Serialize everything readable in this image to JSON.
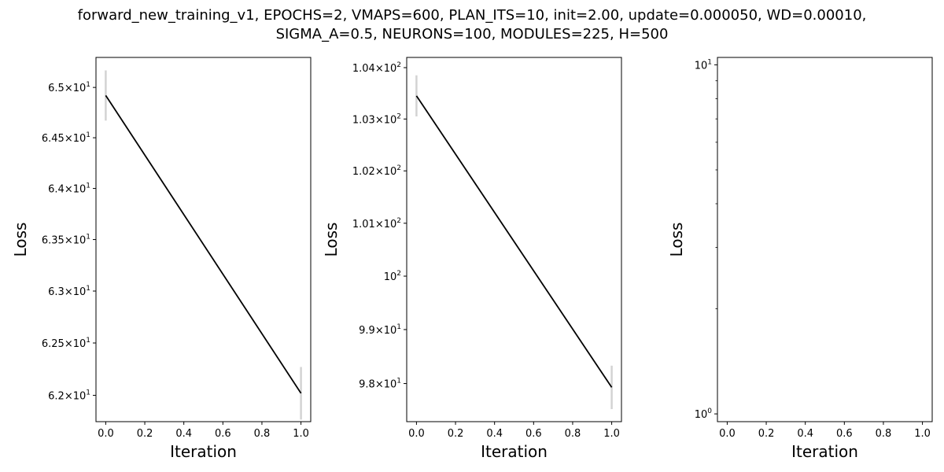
{
  "title": {
    "line1": "forward_new_training_v1, EPOCHS=2, VMAPS=600, PLAN_ITS=10, init=2.00, update=0.000050, WD=0.00010,",
    "line2": "SIGMA_A=0.5, NEURONS=100, MODULES=225, H=500"
  },
  "chart_data": [
    {
      "type": "line",
      "xlabel": "Iteration",
      "ylabel": "Loss",
      "yscale": "log",
      "x": [
        0,
        1
      ],
      "series": [
        {
          "values": [
            64.92,
            62.02
          ],
          "error": [
            0.25,
            0.25
          ],
          "color": "#000000",
          "error_color": "#d3d3d3"
        }
      ],
      "xlim": [
        -0.05,
        1.05
      ],
      "ylim": [
        61.75,
        65.3
      ],
      "xticks": [
        0,
        0.2,
        0.4,
        0.6,
        0.8,
        1.0
      ],
      "xtick_labels": [
        "0.0",
        "0.2",
        "0.4",
        "0.6",
        "0.8",
        "1.0"
      ],
      "yticks": [
        62.0,
        62.5,
        63.0,
        63.5,
        64.0,
        64.5,
        65.0
      ],
      "ytick_labels": [
        {
          "m": "6.2",
          "e": "1"
        },
        {
          "m": "6.25",
          "e": "1"
        },
        {
          "m": "6.3",
          "e": "1"
        },
        {
          "m": "6.35",
          "e": "1"
        },
        {
          "m": "6.4",
          "e": "1"
        },
        {
          "m": "6.45",
          "e": "1"
        },
        {
          "m": "6.5",
          "e": "1"
        }
      ],
      "grid": false
    },
    {
      "type": "line",
      "xlabel": "Iteration",
      "ylabel": "Loss",
      "yscale": "log",
      "x": [
        0,
        1
      ],
      "series": [
        {
          "values": [
            103.45,
            97.93
          ],
          "error": [
            0.4,
            0.4
          ],
          "color": "#000000",
          "error_color": "#d3d3d3"
        }
      ],
      "xlim": [
        -0.05,
        1.05
      ],
      "ylim": [
        97.3,
        104.2
      ],
      "xticks": [
        0,
        0.2,
        0.4,
        0.6,
        0.8,
        1.0
      ],
      "xtick_labels": [
        "0.0",
        "0.2",
        "0.4",
        "0.6",
        "0.8",
        "1.0"
      ],
      "yticks": [
        98,
        99,
        100,
        101,
        102,
        103,
        104
      ],
      "ytick_labels": [
        {
          "m": "9.8",
          "e": "1"
        },
        {
          "m": "9.9",
          "e": "1"
        },
        {
          "m": "",
          "e": "2"
        },
        {
          "m": "1.01",
          "e": "2"
        },
        {
          "m": "1.02",
          "e": "2"
        },
        {
          "m": "1.03",
          "e": "2"
        },
        {
          "m": "1.04",
          "e": "2"
        }
      ],
      "grid": false
    },
    {
      "type": "line",
      "xlabel": "Iteration",
      "ylabel": "Loss",
      "yscale": "log",
      "x": [],
      "series": [],
      "xlim": [
        -0.05,
        1.05
      ],
      "ylim": [
        0.95,
        10.5
      ],
      "xticks": [
        0,
        0.2,
        0.4,
        0.6,
        0.8,
        1.0
      ],
      "xtick_labels": [
        "0.0",
        "0.2",
        "0.4",
        "0.6",
        "0.8",
        "1.0"
      ],
      "yticks": [
        1,
        10
      ],
      "ytick_labels": [
        {
          "m": "",
          "e": "0"
        },
        {
          "m": "",
          "e": "1"
        }
      ],
      "minor_yticks": [
        2,
        3,
        4,
        5,
        6,
        7,
        8,
        9
      ],
      "grid": false
    }
  ]
}
